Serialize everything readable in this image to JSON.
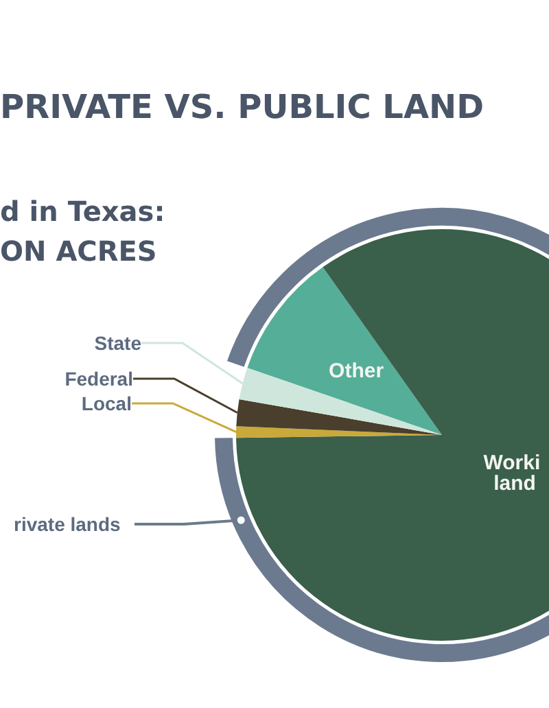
{
  "chart_data": {
    "type": "pie",
    "title": "PRIVATE VS. PUBLIC LAND",
    "subtitle": "d in Texas:\nON ACRES",
    "categories": [
      "Other",
      "Worki land",
      "Local",
      "Federal",
      "State"
    ],
    "values": [
      9.9,
      84.6,
      0.9,
      2.1,
      2.5
    ],
    "colors": [
      "#55ae98",
      "#3a5f4b",
      "#c9a93a",
      "#4a3f2c",
      "#cfe6dc"
    ],
    "annotations": [
      "rivate lands"
    ]
  }
}
